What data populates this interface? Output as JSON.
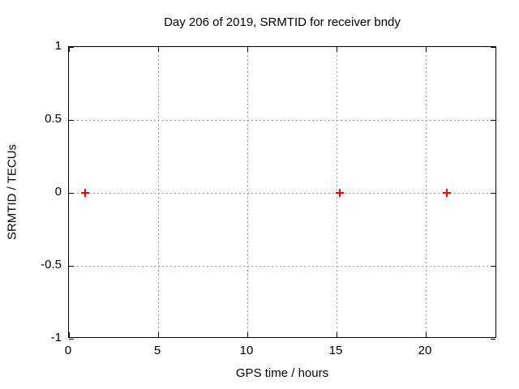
{
  "chart_data": {
    "type": "scatter",
    "title": "Day 206 of 2019, SRMTID for receiver bndy",
    "xlabel": "GPS time / hours",
    "ylabel": "SRMTID / TECUs",
    "xlim": [
      0,
      24
    ],
    "ylim": [
      -1,
      1
    ],
    "grid": true,
    "legend_position": "none",
    "background_color": "#ffffff",
    "axis_color": "#000000",
    "grid_color": "#9a9a9a",
    "x_ticks": [
      {
        "value": 0,
        "label": "0"
      },
      {
        "value": 5,
        "label": "5"
      },
      {
        "value": 10,
        "label": "10"
      },
      {
        "value": 15,
        "label": "15"
      },
      {
        "value": 20,
        "label": "20"
      }
    ],
    "y_ticks": [
      {
        "value": 1,
        "label": "1"
      },
      {
        "value": 0.5,
        "label": "0.5"
      },
      {
        "value": 0,
        "label": "0"
      },
      {
        "value": -0.5,
        "label": "-0.5"
      },
      {
        "value": -1,
        "label": "-1"
      }
    ],
    "series": [
      {
        "name": "SRMTID",
        "marker": "plus",
        "color": "#ff0000",
        "points": [
          {
            "x": 0.9,
            "y": 0.0
          },
          {
            "x": 15.2,
            "y": 0.0
          },
          {
            "x": 21.2,
            "y": 0.0
          }
        ]
      }
    ]
  }
}
